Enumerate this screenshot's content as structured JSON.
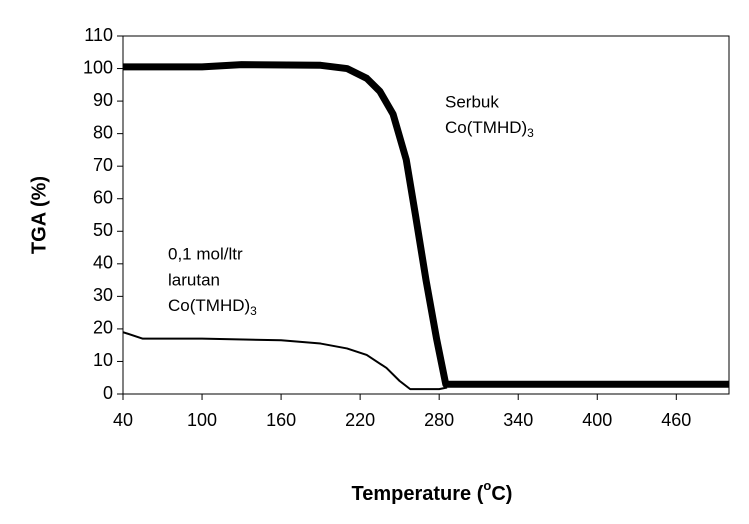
{
  "chart_data": {
    "type": "line",
    "ylabel": "TGA (%)",
    "xlabel": {
      "text": "Temperature (",
      "sup": "o",
      "after": "C)"
    },
    "xlim": [
      40,
      500
    ],
    "xticks": [
      40,
      100,
      160,
      220,
      280,
      340,
      400,
      460
    ],
    "ylim": [
      0,
      110
    ],
    "yticks": [
      0,
      10,
      20,
      30,
      40,
      50,
      60,
      70,
      80,
      90,
      100,
      110
    ],
    "series": [
      {
        "color": "#000000",
        "width": 7,
        "x": [
          40,
          100,
          130,
          190,
          210,
          225,
          235,
          245,
          255,
          262,
          270,
          278,
          285,
          300,
          400,
          500
        ],
        "values": [
          100.5,
          100.5,
          101.2,
          101,
          100,
          97,
          93,
          86,
          72,
          55,
          35,
          17,
          3,
          3,
          3,
          3
        ]
      },
      {
        "color": "#000000",
        "width": 2,
        "x": [
          40,
          55,
          100,
          160,
          190,
          210,
          225,
          240,
          250,
          258,
          280,
          286
        ],
        "values": [
          19,
          17,
          17,
          16.5,
          15.5,
          14,
          12,
          8,
          4,
          1.5,
          1.5,
          2
        ]
      }
    ],
    "annotations": [
      {
        "lines": [
          "Serbuk"
        ],
        "formula": "Co(TMHD)",
        "sub": "3"
      },
      {
        "lines": [
          "0,1 mol/ltr",
          "larutan"
        ],
        "formula": "Co(TMHD)",
        "sub": "3"
      }
    ]
  }
}
